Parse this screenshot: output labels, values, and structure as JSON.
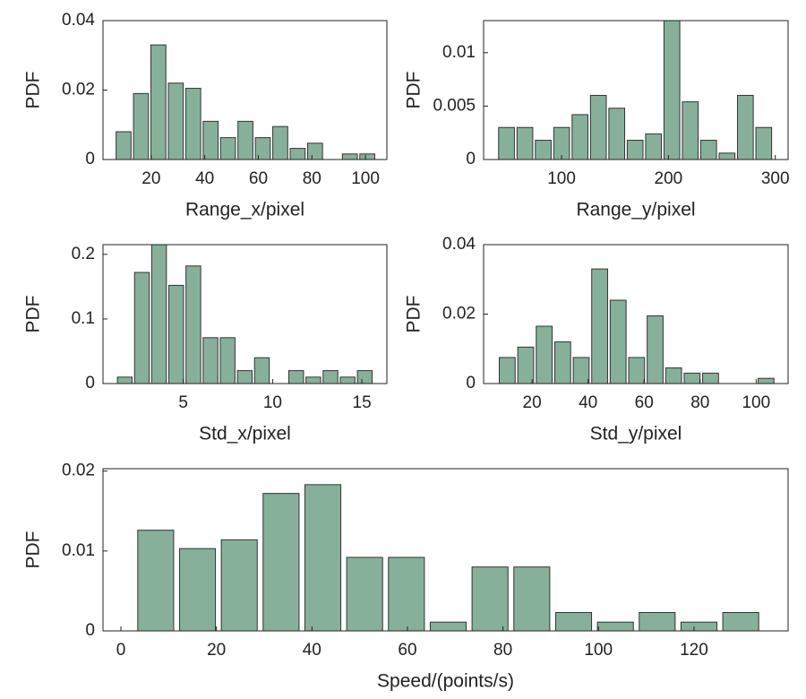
{
  "chart_data": [
    {
      "type": "histogram",
      "xlabel": "Range_x/pixel",
      "ylabel": "PDF",
      "color": "#86b09a",
      "bins": [
        6.5,
        13,
        19.5,
        26,
        32.5,
        39,
        45.5,
        52,
        58.5,
        65,
        71.5,
        78,
        84.5,
        91,
        97.5,
        104
      ],
      "values": [
        0.008,
        0.019,
        0.033,
        0.022,
        0.0205,
        0.011,
        0.0063,
        0.011,
        0.0063,
        0.0095,
        0.0032,
        0.0047,
        0,
        0.0016,
        0.0016
      ],
      "xlim": [
        2,
        108
      ],
      "ylim": [
        0,
        0.04
      ],
      "xticks": [
        20,
        40,
        60,
        80,
        100
      ],
      "yticks": [
        0,
        0.02,
        0.04
      ]
    },
    {
      "type": "histogram",
      "xlabel": "Range_y/pixel",
      "ylabel": "PDF",
      "color": "#86b09a",
      "bins": [
        40,
        57.2,
        74.4,
        91.6,
        108.8,
        126,
        143.2,
        160.4,
        177.6,
        194.8,
        212,
        229.2,
        246.4,
        263.6,
        280.8,
        298
      ],
      "values": [
        0.003,
        0.003,
        0.0018,
        0.003,
        0.0042,
        0.006,
        0.0048,
        0.0018,
        0.0024,
        0.013,
        0.0054,
        0.0018,
        0.0006,
        0.006,
        0.003
      ],
      "xlim": [
        27,
        312
      ],
      "ylim": [
        0,
        0.013
      ],
      "xticks": [
        100,
        200,
        300
      ],
      "yticks": [
        0,
        0.005,
        0.01
      ]
    },
    {
      "type": "histogram",
      "xlabel": "Std_x/pixel",
      "ylabel": "PDF",
      "color": "#86b09a",
      "bins": [
        1.25,
        2.21,
        3.17,
        4.13,
        5.09,
        6.05,
        7.01,
        7.97,
        8.93,
        9.89,
        10.85,
        11.81,
        12.77,
        13.73,
        14.69,
        15.65
      ],
      "values": [
        0.01,
        0.172,
        0.215,
        0.152,
        0.182,
        0.071,
        0.071,
        0.02,
        0.04,
        0,
        0.02,
        0.01,
        0.02,
        0.01,
        0.02
      ],
      "xlim": [
        0.5,
        16.4
      ],
      "ylim": [
        0,
        0.215
      ],
      "xticks": [
        5,
        10,
        15
      ],
      "yticks": [
        0,
        0.1,
        0.2
      ]
    },
    {
      "type": "histogram",
      "xlabel": "Std_y/pixel",
      "ylabel": "PDF",
      "color": "#86b09a",
      "bins": [
        7.9,
        14.5,
        21.1,
        27.7,
        34.3,
        40.9,
        47.5,
        54.1,
        60.7,
        67.3,
        73.9,
        80.5,
        87.1,
        93.7,
        100.3,
        106.9
      ],
      "values": [
        0.0075,
        0.0105,
        0.0165,
        0.012,
        0.0075,
        0.033,
        0.024,
        0.0075,
        0.0195,
        0.0045,
        0.003,
        0.003,
        0,
        0,
        0.0015
      ],
      "xlim": [
        2.7,
        111.4
      ],
      "ylim": [
        0,
        0.04
      ],
      "xticks": [
        20,
        40,
        60,
        80,
        100
      ],
      "yticks": [
        0,
        0.02,
        0.04
      ]
    },
    {
      "type": "histogram",
      "xlabel": "Speed/(points/s)",
      "ylabel": "PDF",
      "color": "#86b09a",
      "bins": [
        3,
        11.75,
        20.5,
        29.25,
        38,
        46.75,
        55.5,
        64.25,
        73,
        81.75,
        90.5,
        99.25,
        108,
        116.75,
        125.5,
        134.25
      ],
      "values": [
        0.0126,
        0.0103,
        0.0114,
        0.0172,
        0.0183,
        0.0092,
        0.0092,
        0.0011,
        0.008,
        0.008,
        0.0023,
        0.0011,
        0.0023,
        0.0011,
        0.0023
      ],
      "xlim": [
        -3.75,
        139.7
      ],
      "ylim": [
        0,
        0.0203
      ],
      "xticks": [
        0,
        20,
        40,
        60,
        80,
        100,
        120
      ],
      "yticks": [
        0,
        0.01,
        0.02
      ]
    }
  ]
}
